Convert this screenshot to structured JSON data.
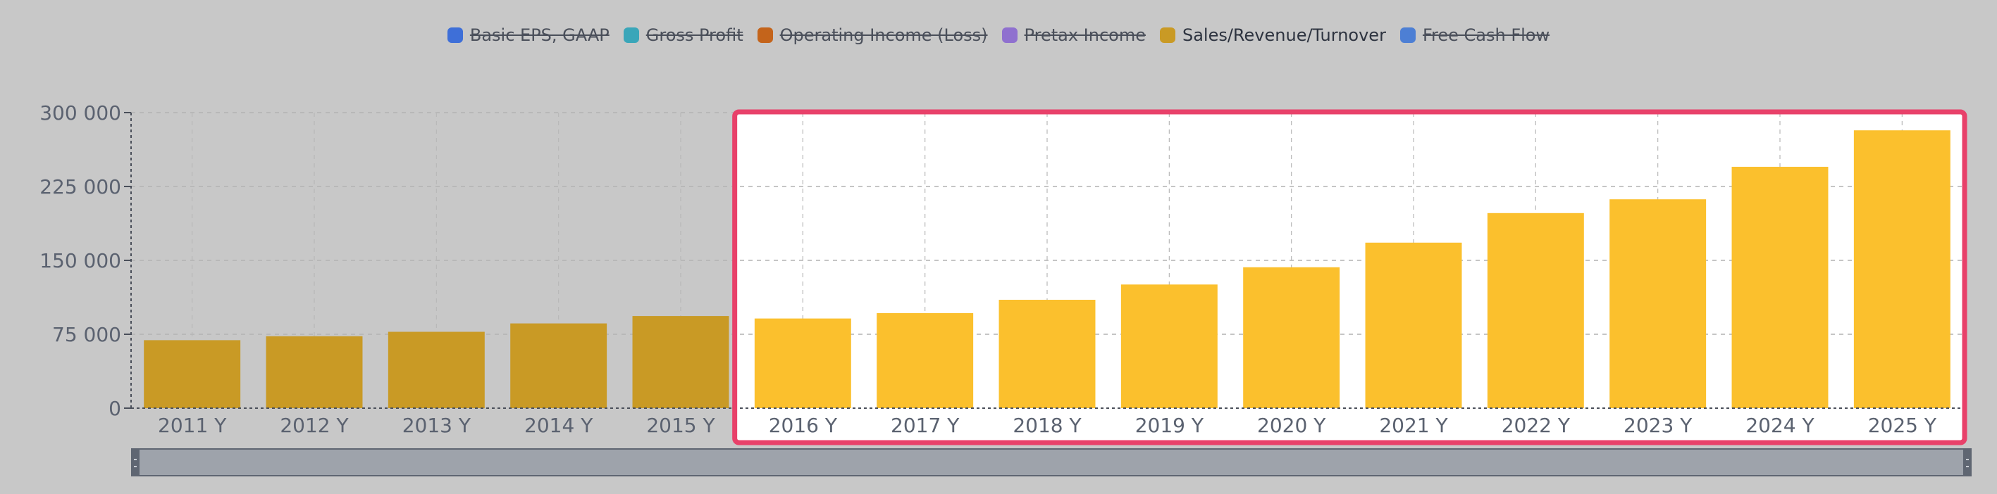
{
  "legend": [
    {
      "label": "Basic EPS, GAAP",
      "color": "#3e6fd8",
      "active": false
    },
    {
      "label": "Gross Profit",
      "color": "#3aa6b9",
      "active": false
    },
    {
      "label": "Operating Income (Loss)",
      "color": "#c4641b",
      "active": false
    },
    {
      "label": "Pretax Income",
      "color": "#8f70cf",
      "active": false
    },
    {
      "label": "Sales/Revenue/Turnover",
      "color": "#c99a25",
      "active": true
    },
    {
      "label": "Free Cash Flow",
      "color": "#4d7fd4",
      "active": false
    }
  ],
  "chart_data": {
    "type": "bar",
    "categories": [
      "2011 Y",
      "2012 Y",
      "2013 Y",
      "2014 Y",
      "2015 Y",
      "2016 Y",
      "2017 Y",
      "2018 Y",
      "2019 Y",
      "2020 Y",
      "2021 Y",
      "2022 Y",
      "2023 Y",
      "2024 Y",
      "2025 Y"
    ],
    "series": [
      {
        "name": "Sales/Revenue/Turnover",
        "values": [
          69000,
          73000,
          77500,
          86000,
          93500,
          91000,
          96500,
          110000,
          125500,
          143000,
          168000,
          198000,
          212000,
          245000,
          282000
        ]
      }
    ],
    "yticks": [
      "300 000",
      "225 000",
      "150 000",
      "75 000",
      "0"
    ],
    "ytick_values": [
      300000,
      225000,
      150000,
      75000,
      0
    ],
    "ylim": [
      0,
      300000
    ],
    "grid": true,
    "highlight_range": [
      "2016 Y",
      "2025 Y"
    ],
    "colors": {
      "bar_dim": "#c99a25",
      "bar_bright": "#fbc02d",
      "highlight_border": "#e8416a",
      "highlight_fill": "#ffffff"
    }
  }
}
